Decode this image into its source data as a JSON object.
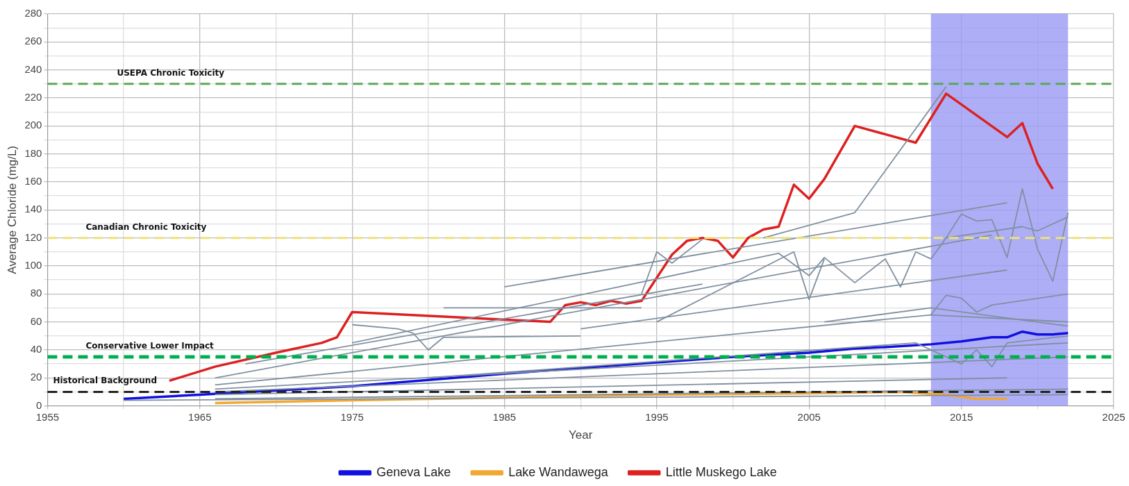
{
  "chart_data": {
    "type": "line",
    "xlabel": "Year",
    "ylabel": "Average Chloride (mg/L)",
    "xlim": [
      1955,
      2025
    ],
    "xticks": [
      1955,
      {
        "value": 1960,
        "label": null
      },
      1965,
      {
        "value": 1970,
        "label": null
      },
      1975,
      {
        "value": 1980,
        "label": null
      },
      1985,
      {
        "value": 1990,
        "label": null
      },
      1995,
      {
        "value": 2000,
        "label": null
      },
      2005,
      {
        "value": 2010,
        "label": null
      },
      2015,
      {
        "value": 2020,
        "label": null
      },
      2025
    ],
    "ylim": [
      0,
      280
    ],
    "yticks": [
      0,
      {
        "value": 10,
        "label": null
      },
      20,
      {
        "value": 30,
        "label": null
      },
      40,
      {
        "value": 50,
        "label": null
      },
      60,
      {
        "value": 70,
        "label": null
      },
      80,
      {
        "value": 90,
        "label": null
      },
      100,
      {
        "value": 110,
        "label": null
      },
      120,
      {
        "value": 130,
        "label": null
      },
      140,
      {
        "value": 150,
        "label": null
      },
      160,
      {
        "value": 170,
        "label": null
      },
      180,
      {
        "value": 190,
        "label": null
      },
      200,
      {
        "value": 210,
        "label": null
      },
      220,
      {
        "value": 230,
        "label": null
      },
      240,
      {
        "value": 250,
        "label": null
      },
      260,
      {
        "value": 270,
        "label": null
      },
      280
    ],
    "grid": true,
    "legend": "bottom",
    "marker": "none",
    "line_style": "solid",
    "bands": [
      {
        "axis": "x",
        "from": 2013,
        "to": 2022,
        "color": "#9a9af5"
      }
    ],
    "ref_lines": [
      {
        "axis": "y",
        "value": 230,
        "label": "USEPA Chronic Toxicity",
        "color": "#5aa85a",
        "line_style": "dashed"
      },
      {
        "axis": "y",
        "value": 120,
        "label": "Canadian Chronic Toxicity",
        "color": "#ece27a",
        "line_style": "dashed"
      },
      {
        "axis": "y",
        "value": 35,
        "label": "Conservative Lower Impact",
        "color": "#00b050",
        "line_style": "dashed"
      },
      {
        "axis": "y",
        "value": 10,
        "label": "Historical Background",
        "color": "#222222",
        "line_style": "dashed"
      }
    ],
    "series": [
      {
        "color": "#8090a0",
        "x": [
          2002,
          2008,
          2014
        ],
        "values": [
          120,
          138,
          228
        ]
      },
      {
        "color": "#8090a0",
        "x": [
          2013,
          2014,
          2015,
          2016,
          2017,
          2018,
          2019,
          2020,
          2021,
          2022
        ],
        "values": [
          105,
          120,
          137,
          132,
          133,
          106,
          155,
          112,
          89,
          138
        ]
      },
      {
        "color": "#8090a0",
        "x": [
          1985,
          2018
        ],
        "values": [
          85,
          145
        ]
      },
      {
        "color": "#8090a0",
        "x": [
          2014,
          2019,
          2020,
          2022
        ],
        "values": [
          120,
          128,
          125,
          135
        ]
      },
      {
        "color": "#8090a0",
        "x": [
          1966,
          2017
        ],
        "values": [
          20,
          122
        ]
      },
      {
        "color": "#8090a0",
        "x": [
          1975,
          2003,
          2005,
          2006,
          2008,
          2010,
          2011,
          2012,
          2013
        ],
        "values": [
          45,
          109,
          93,
          106,
          88,
          105,
          85,
          110,
          105
        ]
      },
      {
        "color": "#8090a0",
        "x": [
          1994,
          1995,
          1996,
          1998
        ],
        "values": [
          80,
          110,
          102,
          119
        ]
      },
      {
        "color": "#8090a0",
        "x": [
          1995,
          2004,
          2005,
          2006
        ],
        "values": [
          60,
          110,
          76,
          105
        ]
      },
      {
        "color": "#8090a0",
        "x": [
          1990,
          2018
        ],
        "values": [
          55,
          97
        ]
      },
      {
        "color": "#8090a0",
        "x": [
          1981,
          1994
        ],
        "values": [
          70,
          70
        ]
      },
      {
        "color": "#8090a0",
        "x": [
          1968,
          1998
        ],
        "values": [
          30,
          87
        ]
      },
      {
        "color": "#8090a0",
        "x": [
          1975,
          1978,
          1979,
          1980,
          1981,
          1990
        ],
        "values": [
          58,
          55,
          52,
          40,
          49,
          50
        ]
      },
      {
        "color": "#8090a0",
        "x": [
          2013,
          2014,
          2015,
          2016,
          2017,
          2022
        ],
        "values": [
          65,
          79,
          77,
          67,
          72,
          80
        ]
      },
      {
        "color": "#8090a0",
        "x": [
          2006,
          2013,
          2022
        ],
        "values": [
          60,
          70,
          57
        ]
      },
      {
        "color": "#8090a0",
        "x": [
          1966,
          2013,
          2022
        ],
        "values": [
          15,
          65,
          60
        ]
      },
      {
        "color": "#8090a0",
        "x": [
          1966,
          2022
        ],
        "values": [
          12,
          45
        ]
      },
      {
        "color": "#8090a0",
        "x": [
          1966,
          2022
        ],
        "values": [
          10,
          35
        ]
      },
      {
        "color": "#8090a0",
        "x": [
          1980,
          2012,
          2015,
          2016,
          2017,
          2018,
          2022
        ],
        "values": [
          20,
          45,
          30,
          40,
          28,
          45,
          50
        ]
      },
      {
        "color": "#8090a0",
        "x": [
          1966,
          2018
        ],
        "values": [
          8,
          20
        ]
      },
      {
        "color": "#8090a0",
        "x": [
          1966,
          2022
        ],
        "values": [
          5,
          12
        ]
      },
      {
        "color": "#8090a0",
        "x": [
          1960,
          2022
        ],
        "values": [
          4,
          8
        ]
      },
      {
        "name": "Geneva Lake",
        "color": "#1010e0",
        "x": [
          1960,
          1965,
          1975,
          1985,
          1995,
          2000,
          2005,
          2008,
          2010,
          2013,
          2015,
          2017,
          2018,
          2019,
          2020,
          2021,
          2022
        ],
        "values": [
          5,
          8,
          14,
          23,
          31,
          35,
          38,
          41,
          42,
          44,
          46,
          49,
          49,
          53,
          51,
          51,
          52
        ]
      },
      {
        "name": "Lake Wandawega",
        "color": "#f0a830",
        "x": [
          1966,
          1975,
          1985,
          1995,
          2005,
          2011,
          2014,
          2016,
          2018
        ],
        "values": [
          2,
          4,
          6,
          8,
          9,
          10,
          8,
          5,
          5
        ]
      },
      {
        "name": "Little Muskego Lake",
        "color": "#dd2020",
        "x": [
          1963,
          1966,
          1970,
          1973,
          1974,
          1975,
          1988,
          1989,
          1990,
          1991,
          1992,
          1993,
          1994,
          1996,
          1997,
          1998,
          1999,
          2000,
          2001,
          2002,
          2003,
          2004,
          2005,
          2006,
          2008,
          2012,
          2014,
          2018,
          2019,
          2020,
          2021
        ],
        "values": [
          18,
          28,
          38,
          45,
          49,
          67,
          60,
          72,
          74,
          72,
          75,
          73,
          75,
          108,
          118,
          120,
          118,
          106,
          120,
          126,
          128,
          158,
          148,
          162,
          200,
          188,
          223,
          192,
          202,
          173,
          155
        ]
      }
    ]
  }
}
